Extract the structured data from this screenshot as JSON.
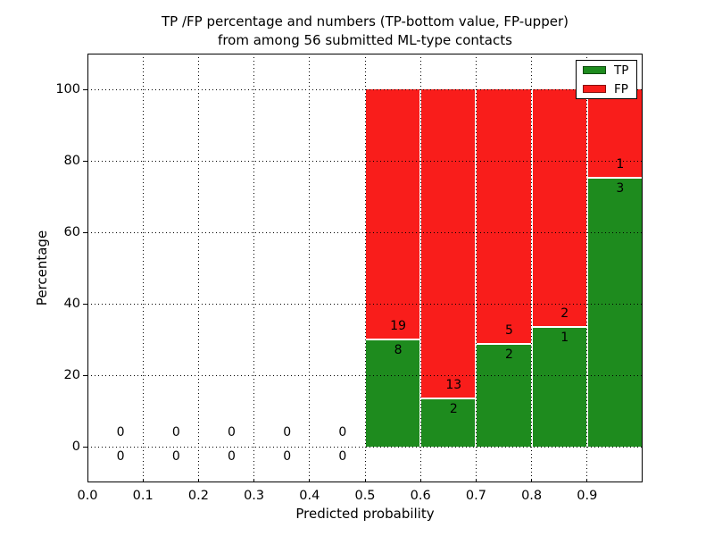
{
  "chart_data": {
    "type": "bar",
    "stacked": true,
    "title_line1": "TP /FP percentage and numbers (TP-bottom value, FP-upper)",
    "title_line2": "from among 56 submitted ML-type contacts",
    "xlabel": "Predicted probability",
    "ylabel": "Percentage",
    "xlim": [
      0.0,
      1.0
    ],
    "ylim": [
      -10,
      110
    ],
    "x_tick_labels": [
      "0.0",
      "0.1",
      "0.2",
      "0.3",
      "0.4",
      "0.5",
      "0.6",
      "0.7",
      "0.8",
      "0.9"
    ],
    "y_tick_values": [
      0,
      20,
      40,
      60,
      80,
      100
    ],
    "grid": "dotted",
    "legend_position": "upper-right",
    "total_submitted": 56,
    "colors": {
      "tp": "#1e8b1e",
      "fp": "#f91d1b"
    },
    "legend": [
      {
        "name": "TP",
        "color_key": "tp"
      },
      {
        "name": "FP",
        "color_key": "fp"
      }
    ],
    "bins": [
      {
        "x_start": 0.0,
        "x_end": 0.1,
        "tp_count": 0,
        "fp_count": 0,
        "tp_pct": 0,
        "fp_pct": 0
      },
      {
        "x_start": 0.1,
        "x_end": 0.2,
        "tp_count": 0,
        "fp_count": 0,
        "tp_pct": 0,
        "fp_pct": 0
      },
      {
        "x_start": 0.2,
        "x_end": 0.3,
        "tp_count": 0,
        "fp_count": 0,
        "tp_pct": 0,
        "fp_pct": 0
      },
      {
        "x_start": 0.3,
        "x_end": 0.4,
        "tp_count": 0,
        "fp_count": 0,
        "tp_pct": 0,
        "fp_pct": 0
      },
      {
        "x_start": 0.4,
        "x_end": 0.5,
        "tp_count": 0,
        "fp_count": 0,
        "tp_pct": 0,
        "fp_pct": 0
      },
      {
        "x_start": 0.5,
        "x_end": 0.6,
        "tp_count": 8,
        "fp_count": 19,
        "tp_pct": 29.63,
        "fp_pct": 70.37
      },
      {
        "x_start": 0.6,
        "x_end": 0.7,
        "tp_count": 2,
        "fp_count": 13,
        "tp_pct": 13.33,
        "fp_pct": 86.67
      },
      {
        "x_start": 0.7,
        "x_end": 0.8,
        "tp_count": 2,
        "fp_count": 5,
        "tp_pct": 28.57,
        "fp_pct": 71.43
      },
      {
        "x_start": 0.8,
        "x_end": 0.9,
        "tp_count": 1,
        "fp_count": 2,
        "tp_pct": 33.33,
        "fp_pct": 66.67
      },
      {
        "x_start": 0.9,
        "x_end": 1.0,
        "tp_count": 3,
        "fp_count": 1,
        "tp_pct": 75.0,
        "fp_pct": 25.0
      }
    ]
  }
}
